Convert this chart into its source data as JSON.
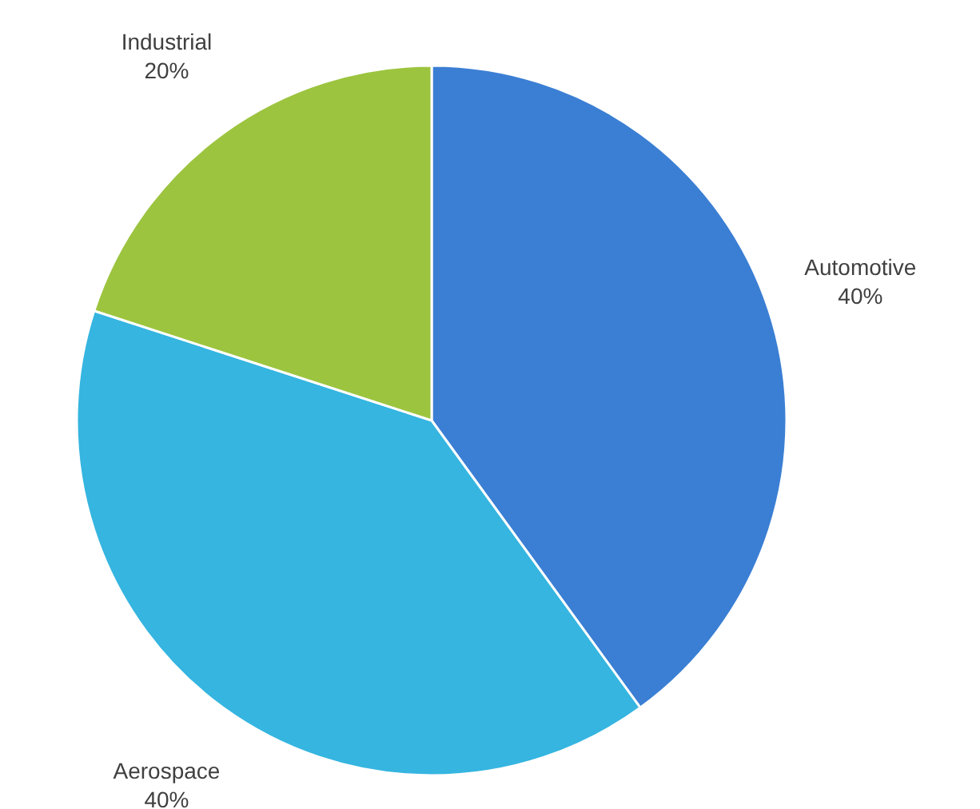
{
  "chart_data": {
    "type": "pie",
    "categories": [
      "Automotive",
      "Aerospace",
      "Industrial"
    ],
    "values": [
      40,
      40,
      20
    ],
    "colors": [
      "#3b7fd4",
      "#35b5e0",
      "#9cc43f"
    ],
    "value_labels": [
      "40%",
      "40%",
      "20%"
    ]
  }
}
